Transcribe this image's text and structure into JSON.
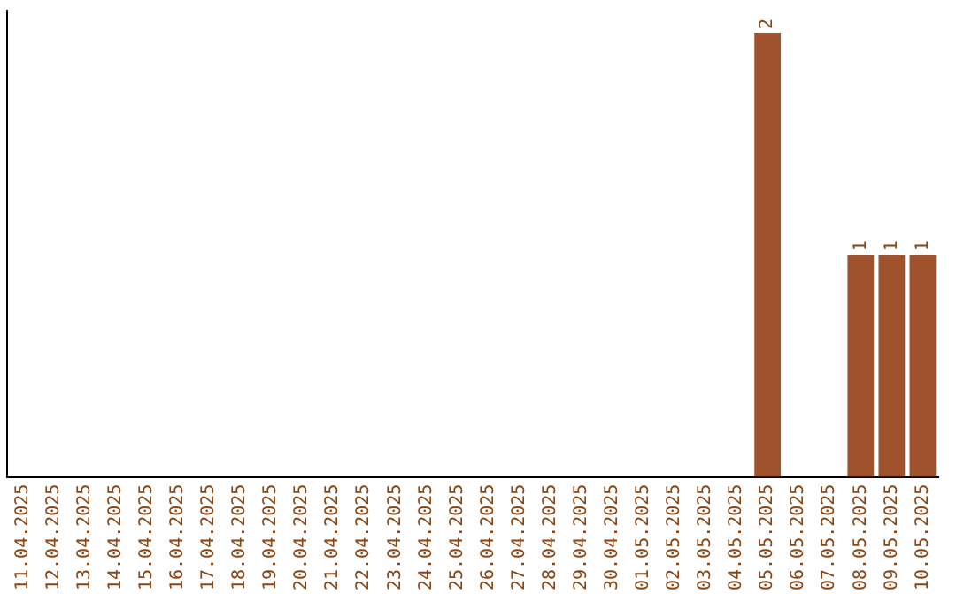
{
  "chart_data": {
    "type": "bar",
    "categories": [
      "11.04.2025",
      "12.04.2025",
      "13.04.2025",
      "14.04.2025",
      "15.04.2025",
      "16.04.2025",
      "17.04.2025",
      "18.04.2025",
      "19.04.2025",
      "20.04.2025",
      "21.04.2025",
      "22.04.2025",
      "23.04.2025",
      "24.04.2025",
      "25.04.2025",
      "26.04.2025",
      "27.04.2025",
      "28.04.2025",
      "29.04.2025",
      "30.04.2025",
      "01.05.2025",
      "02.05.2025",
      "03.05.2025",
      "04.05.2025",
      "05.05.2025",
      "06.05.2025",
      "07.05.2025",
      "08.05.2025",
      "09.05.2025",
      "10.05.2025"
    ],
    "values": [
      null,
      null,
      null,
      null,
      null,
      null,
      null,
      null,
      null,
      null,
      null,
      null,
      null,
      null,
      null,
      null,
      null,
      null,
      null,
      null,
      null,
      null,
      null,
      null,
      2,
      null,
      null,
      1,
      1,
      1
    ],
    "data_labels": true,
    "color": "#a0522d",
    "ylim": [
      0,
      2.1
    ],
    "tick_labels": "x",
    "grid": false,
    "legend": false
  }
}
